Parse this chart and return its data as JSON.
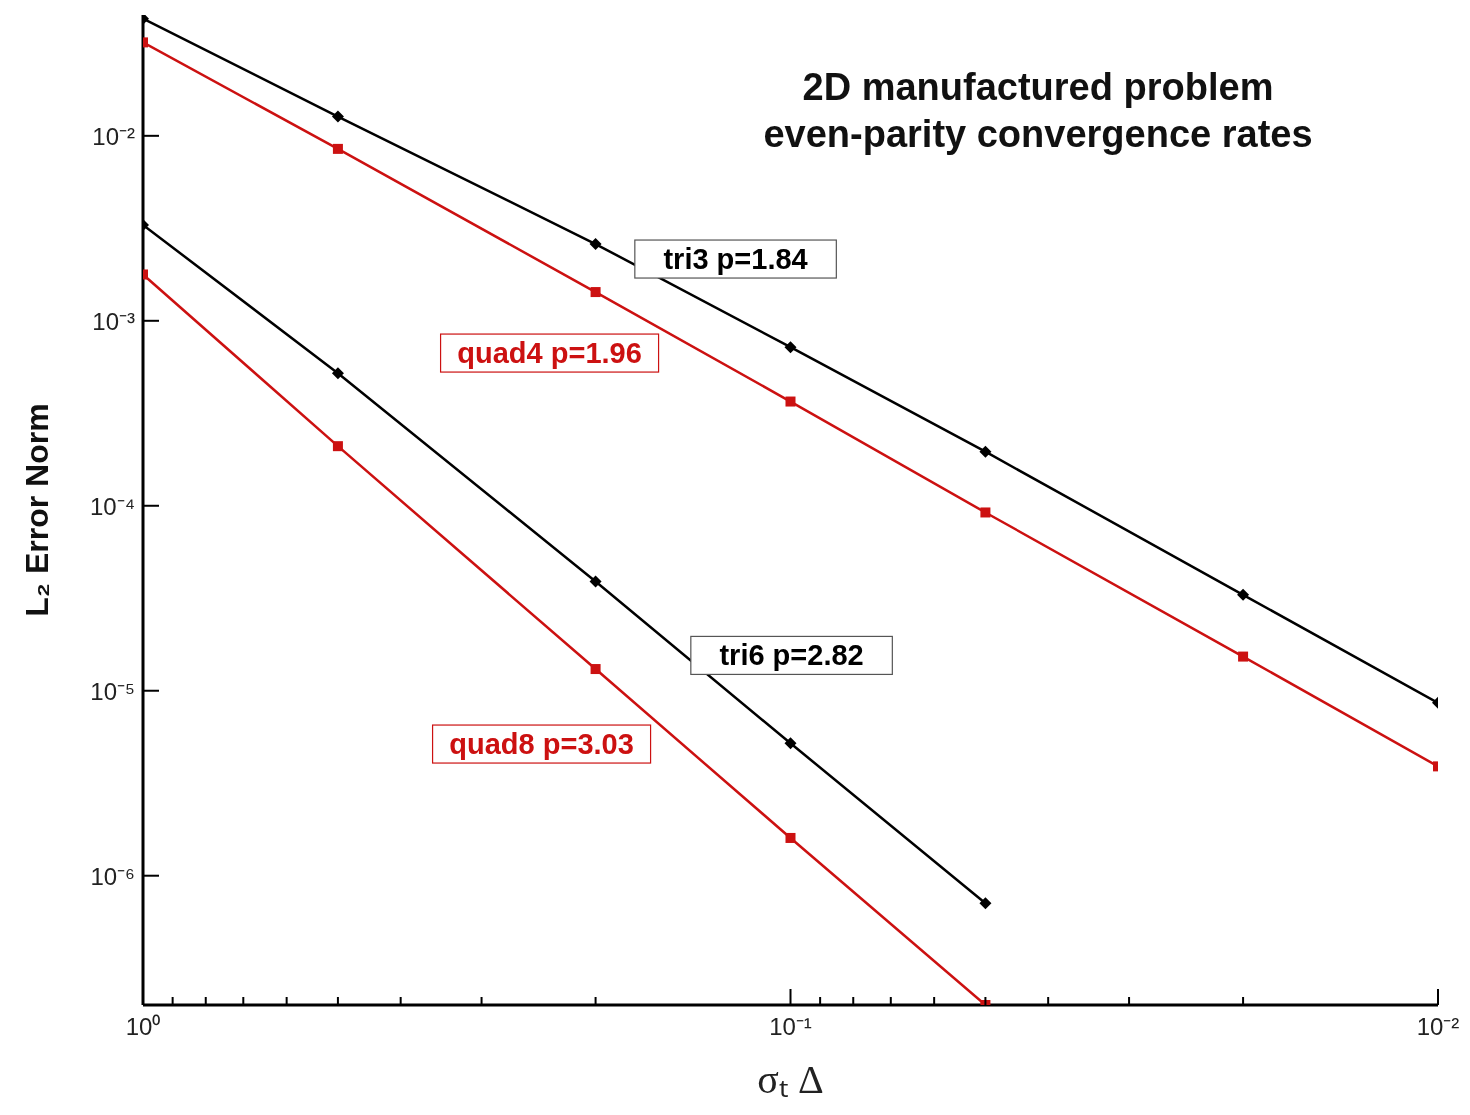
{
  "chart_data": {
    "type": "line",
    "title": "2D manufactured problem",
    "subtitle": "even-parity convergence rates",
    "xlabel": "σₜ Δ",
    "ylabel": "L₂ Error Norm",
    "log": "xy",
    "grid": false,
    "x": [
      1,
      0.5,
      0.2,
      0.1,
      0.05,
      0.02,
      0.01
    ],
    "series": [
      {
        "name": "tri3 p=1.84",
        "color": "#000000",
        "marker": "diamond",
        "values": [
          0.043,
          0.0127,
          0.0026,
          0.00072,
          0.000196,
          3.3e-05,
          8.6e-06
        ]
      },
      {
        "name": "quad4 p=1.96",
        "color": "#cc1111",
        "marker": "square",
        "values": [
          0.032,
          0.0085,
          0.00143,
          0.000366,
          9.2e-05,
          1.53e-05,
          3.9e-06
        ]
      },
      {
        "name": "tri6 p=2.82",
        "color": "#000000",
        "marker": "diamond",
        "values": [
          0.0033,
          0.00052,
          3.9e-05,
          5.2e-06,
          7.1e-07,
          null,
          null
        ]
      },
      {
        "name": "quad8 p=3.03",
        "color": "#cc1111",
        "marker": "square",
        "values": [
          0.00178,
          0.00021,
          1.31e-05,
          1.6e-06,
          2e-07,
          null,
          null
        ]
      }
    ],
    "xlim": [
      1,
      0.01
    ],
    "xticks": [
      {
        "value": 1,
        "label": "10⁰"
      },
      {
        "value": 0.9,
        "label": null
      },
      {
        "value": 0.8,
        "label": null
      },
      {
        "value": 0.7,
        "label": null
      },
      {
        "value": 0.6,
        "label": null
      },
      {
        "value": 0.5,
        "label": null
      },
      {
        "value": 0.4,
        "label": null
      },
      {
        "value": 0.3,
        "label": null
      },
      {
        "value": 0.2,
        "label": null
      },
      {
        "value": 0.1,
        "label": "10⁻¹"
      },
      {
        "value": 0.09,
        "label": null
      },
      {
        "value": 0.08,
        "label": null
      },
      {
        "value": 0.07,
        "label": null
      },
      {
        "value": 0.06,
        "label": null
      },
      {
        "value": 0.05,
        "label": null
      },
      {
        "value": 0.04,
        "label": null
      },
      {
        "value": 0.03,
        "label": null
      },
      {
        "value": 0.02,
        "label": null
      },
      {
        "value": 0.01,
        "label": "10⁻²"
      }
    ],
    "ylim": [
      2e-07,
      0.045
    ],
    "yticks": [
      {
        "value": 1e-06,
        "label": "10⁻⁶"
      },
      {
        "value": 1e-05,
        "label": "10⁻⁵"
      },
      {
        "value": 0.0001,
        "label": "10⁻⁴"
      },
      {
        "value": 0.001,
        "label": "10⁻³"
      },
      {
        "value": 0.01,
        "label": "10⁻²"
      }
    ]
  }
}
